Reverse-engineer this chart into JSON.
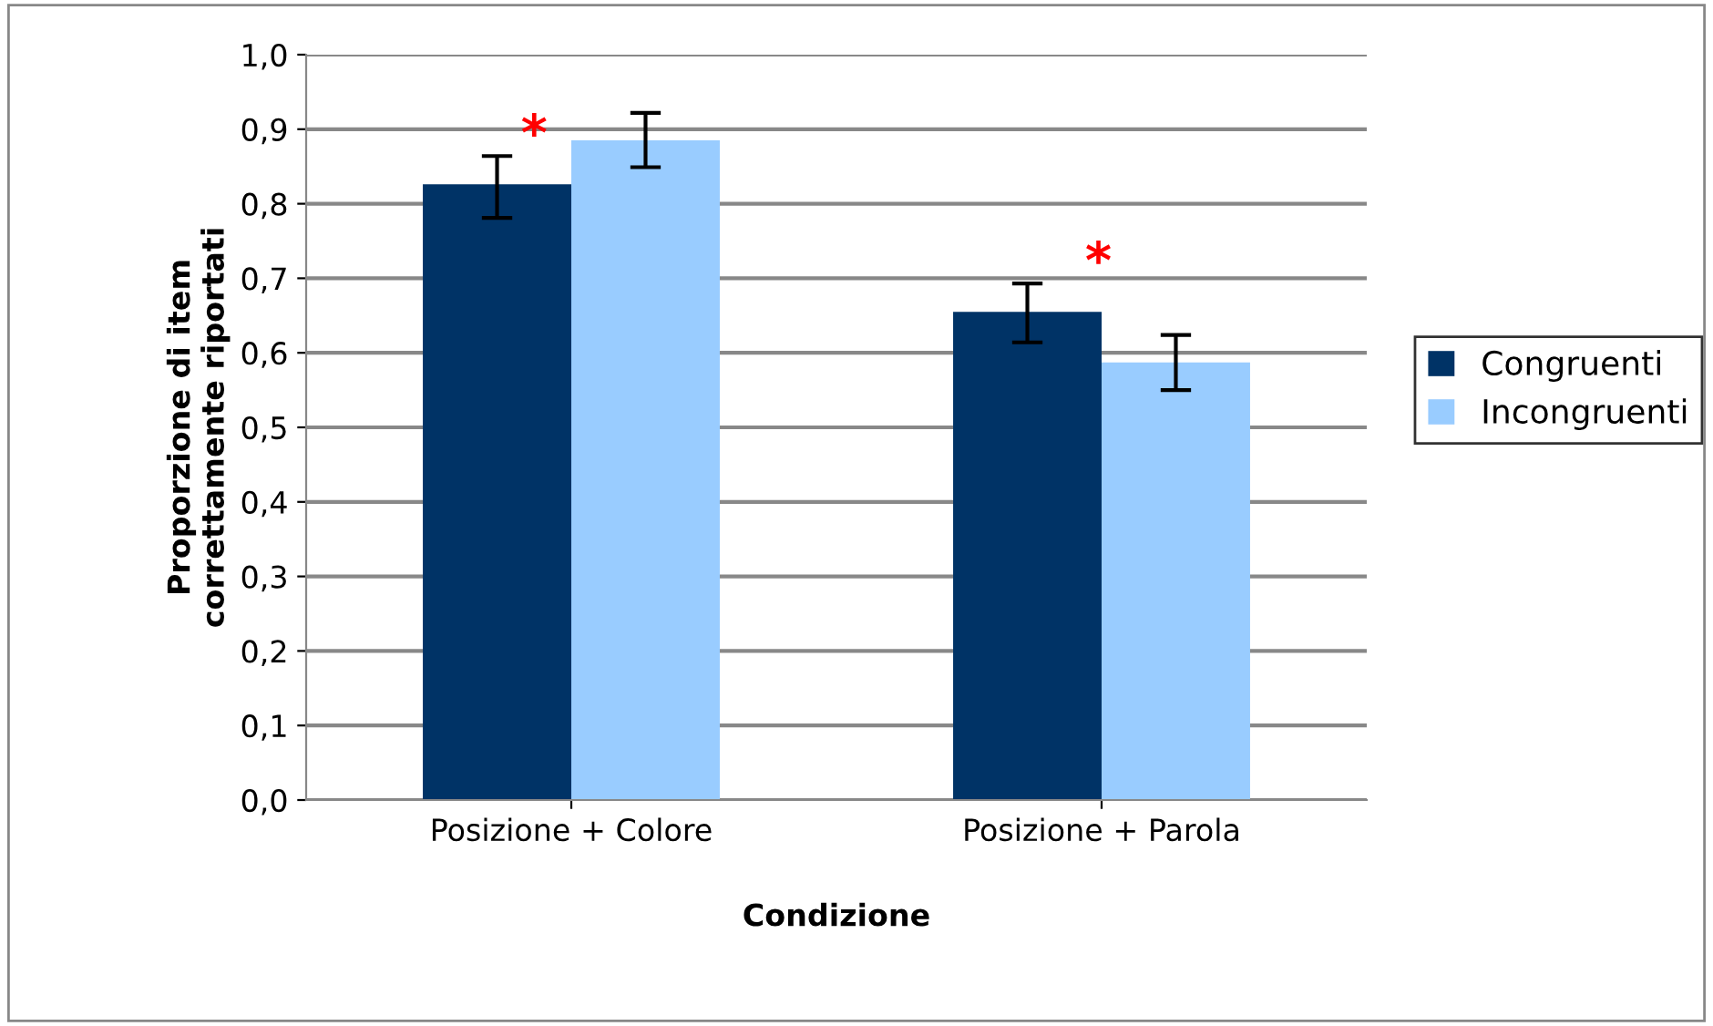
{
  "chart_data": {
    "type": "bar",
    "xlabel": "Condizione",
    "ylabel": "Proporzione di item\ncorrettamente riportati",
    "categories": [
      "Posizione + Colore",
      "Posizione + Parola"
    ],
    "series": [
      {
        "name": "Congruenti",
        "color": "#003366",
        "values": [
          0.826,
          0.655
        ],
        "errors": [
          [
            0.781,
            0.864
          ],
          [
            0.614,
            0.693
          ]
        ]
      },
      {
        "name": "Incongruenti",
        "color": "#99ccff",
        "values": [
          0.885,
          0.587
        ],
        "errors": [
          [
            0.849,
            0.922
          ],
          [
            0.55,
            0.624
          ]
        ]
      }
    ],
    "ylim": [
      0,
      1
    ],
    "yticks": [
      {
        "value": 0,
        "label": "0,0"
      },
      {
        "value": 0.1,
        "label": "0,1"
      },
      {
        "value": 0.2,
        "label": "0,2"
      },
      {
        "value": 0.3,
        "label": "0,3"
      },
      {
        "value": 0.4,
        "label": "0,4"
      },
      {
        "value": 0.5,
        "label": "0,5"
      },
      {
        "value": 0.6,
        "label": "0,6"
      },
      {
        "value": 0.7,
        "label": "0,7"
      },
      {
        "value": 0.8,
        "label": "0,8"
      },
      {
        "value": 0.9,
        "label": "0,9"
      },
      {
        "value": 1.0,
        "label": "1,0"
      }
    ],
    "grid": "y",
    "legend": "right",
    "annotations": [
      "*",
      "*"
    ]
  }
}
